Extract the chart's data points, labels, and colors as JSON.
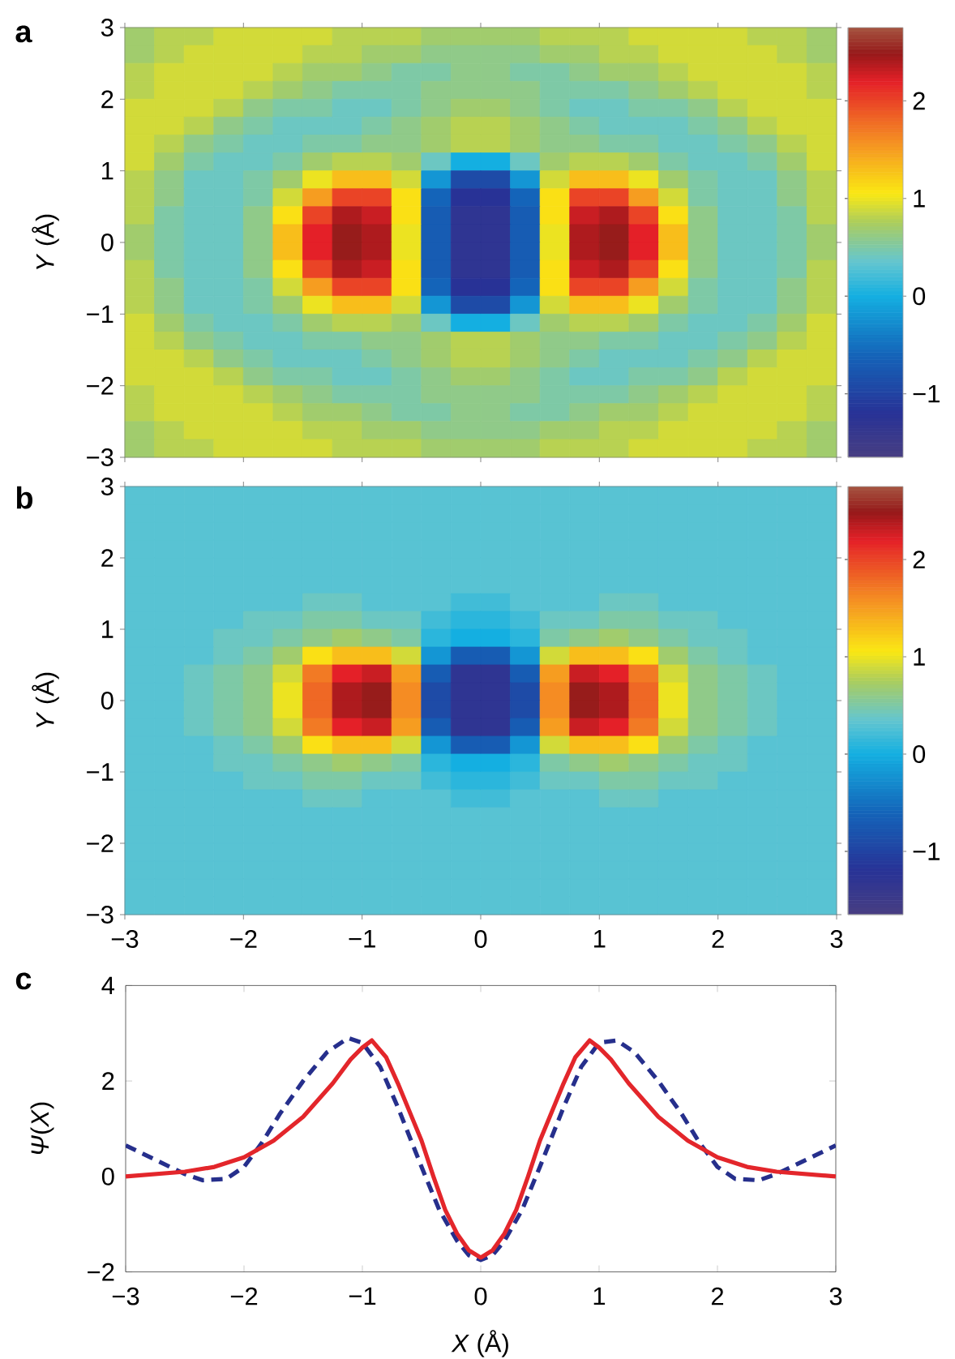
{
  "chart_data": [
    {
      "type": "heatmap",
      "title": "a",
      "ylabel": "*Y* (Å)",
      "xlim": [
        -3,
        3
      ],
      "ylim": [
        -3,
        3
      ],
      "xticks": [
        -3,
        -2,
        -1,
        0,
        1,
        2,
        3
      ],
      "yticks": [
        {
          "value": -3,
          "label": "−3"
        },
        {
          "value": -2,
          "label": "−2"
        },
        {
          "value": -1,
          "label": "−1"
        },
        0,
        1,
        2,
        3
      ],
      "tick_labels": "y",
      "clim": [
        -1.65,
        2.75
      ],
      "cticks": [
        {
          "value": -1,
          "label": "−1"
        },
        0,
        1,
        2
      ],
      "x": [
        -2.875,
        -2.625,
        -2.375,
        -2.125,
        -1.875,
        -1.625,
        -1.375,
        -1.125,
        -0.875,
        -0.625,
        -0.375,
        -0.125,
        0.125,
        0.375,
        0.625,
        0.875,
        1.125,
        1.375,
        1.625,
        1.875,
        2.125,
        2.375,
        2.625,
        2.875
      ],
      "y": [
        2.875,
        2.625,
        2.375,
        2.125,
        1.875,
        1.625,
        1.375,
        1.125,
        0.875,
        0.625,
        0.375,
        0.125,
        -0.125,
        -0.375,
        -0.625,
        -0.875,
        -1.125,
        -1.375,
        -1.625,
        -1.875,
        -2.125,
        -2.375,
        -2.625,
        -2.875
      ],
      "cells": [
        [
          0.7,
          0.8,
          0.8,
          0.9,
          0.9,
          0.9,
          0.9,
          0.8,
          0.8,
          0.8,
          0.7,
          0.7,
          0.7,
          0.7,
          0.8,
          0.8,
          0.8,
          0.9,
          0.9,
          0.9,
          0.9,
          0.8,
          0.8,
          0.7
        ],
        [
          0.7,
          0.8,
          0.9,
          0.9,
          0.9,
          0.9,
          0.8,
          0.8,
          0.7,
          0.7,
          0.6,
          0.6,
          0.6,
          0.6,
          0.7,
          0.7,
          0.8,
          0.8,
          0.9,
          0.9,
          0.9,
          0.9,
          0.8,
          0.7
        ],
        [
          0.8,
          0.9,
          0.9,
          0.9,
          0.9,
          0.8,
          0.7,
          0.7,
          0.6,
          0.5,
          0.5,
          0.6,
          0.6,
          0.5,
          0.5,
          0.6,
          0.7,
          0.7,
          0.8,
          0.9,
          0.9,
          0.9,
          0.9,
          0.8
        ],
        [
          0.8,
          0.9,
          0.9,
          0.9,
          0.8,
          0.7,
          0.6,
          0.5,
          0.5,
          0.5,
          0.6,
          0.6,
          0.6,
          0.6,
          0.5,
          0.5,
          0.5,
          0.6,
          0.7,
          0.8,
          0.9,
          0.9,
          0.9,
          0.8
        ],
        [
          0.9,
          0.9,
          0.9,
          0.8,
          0.6,
          0.5,
          0.5,
          0.4,
          0.4,
          0.5,
          0.6,
          0.7,
          0.7,
          0.6,
          0.5,
          0.4,
          0.4,
          0.5,
          0.5,
          0.6,
          0.8,
          0.9,
          0.9,
          0.9
        ],
        [
          0.9,
          0.9,
          0.8,
          0.6,
          0.5,
          0.4,
          0.4,
          0.4,
          0.5,
          0.6,
          0.7,
          0.8,
          0.8,
          0.7,
          0.6,
          0.5,
          0.4,
          0.4,
          0.4,
          0.5,
          0.6,
          0.8,
          0.9,
          0.9
        ],
        [
          0.9,
          0.8,
          0.6,
          0.5,
          0.4,
          0.4,
          0.5,
          0.5,
          0.6,
          0.6,
          0.7,
          0.8,
          0.8,
          0.7,
          0.6,
          0.6,
          0.5,
          0.5,
          0.4,
          0.4,
          0.5,
          0.6,
          0.8,
          0.9
        ],
        [
          0.9,
          0.7,
          0.5,
          0.4,
          0.4,
          0.5,
          0.7,
          0.8,
          0.8,
          0.7,
          0.4,
          0.0,
          0.0,
          0.4,
          0.7,
          0.8,
          0.8,
          0.7,
          0.5,
          0.4,
          0.4,
          0.5,
          0.7,
          0.9
        ],
        [
          0.8,
          0.6,
          0.4,
          0.4,
          0.5,
          0.7,
          1.0,
          1.3,
          1.3,
          0.9,
          -0.2,
          -0.9,
          -0.9,
          -0.2,
          0.9,
          1.3,
          1.3,
          1.0,
          0.7,
          0.5,
          0.4,
          0.4,
          0.6,
          0.8
        ],
        [
          0.8,
          0.6,
          0.4,
          0.4,
          0.5,
          0.9,
          1.5,
          2.0,
          2.0,
          1.1,
          -0.6,
          -1.2,
          -1.2,
          -0.6,
          1.1,
          2.0,
          2.0,
          1.5,
          0.9,
          0.5,
          0.4,
          0.4,
          0.6,
          0.8
        ],
        [
          0.8,
          0.5,
          0.4,
          0.4,
          0.6,
          1.1,
          2.0,
          2.4,
          2.3,
          1.1,
          -0.7,
          -1.3,
          -1.3,
          -0.7,
          1.1,
          2.3,
          2.4,
          2.0,
          1.1,
          0.6,
          0.4,
          0.4,
          0.5,
          0.8
        ],
        [
          0.7,
          0.5,
          0.4,
          0.4,
          0.6,
          1.3,
          2.2,
          2.5,
          2.4,
          1.0,
          -0.7,
          -1.3,
          -1.3,
          -0.7,
          1.0,
          2.4,
          2.5,
          2.2,
          1.3,
          0.6,
          0.4,
          0.4,
          0.5,
          0.7
        ],
        [
          0.7,
          0.5,
          0.4,
          0.4,
          0.6,
          1.3,
          2.2,
          2.5,
          2.4,
          1.0,
          -0.7,
          -1.3,
          -1.3,
          -0.7,
          1.0,
          2.4,
          2.5,
          2.2,
          1.3,
          0.6,
          0.4,
          0.4,
          0.5,
          0.7
        ],
        [
          0.8,
          0.5,
          0.4,
          0.4,
          0.6,
          1.1,
          2.0,
          2.4,
          2.3,
          1.1,
          -0.7,
          -1.3,
          -1.3,
          -0.7,
          1.1,
          2.3,
          2.4,
          2.0,
          1.1,
          0.6,
          0.4,
          0.4,
          0.5,
          0.8
        ],
        [
          0.8,
          0.6,
          0.4,
          0.4,
          0.5,
          0.9,
          1.5,
          2.0,
          2.0,
          1.1,
          -0.6,
          -1.2,
          -1.2,
          -0.6,
          1.1,
          2.0,
          2.0,
          1.5,
          0.9,
          0.5,
          0.4,
          0.4,
          0.6,
          0.8
        ],
        [
          0.8,
          0.6,
          0.4,
          0.4,
          0.5,
          0.7,
          1.0,
          1.3,
          1.3,
          0.9,
          -0.2,
          -0.9,
          -0.9,
          -0.2,
          0.9,
          1.3,
          1.3,
          1.0,
          0.7,
          0.5,
          0.4,
          0.4,
          0.6,
          0.8
        ],
        [
          0.9,
          0.7,
          0.5,
          0.4,
          0.4,
          0.5,
          0.7,
          0.8,
          0.8,
          0.7,
          0.4,
          0.0,
          0.0,
          0.4,
          0.7,
          0.8,
          0.8,
          0.7,
          0.5,
          0.4,
          0.4,
          0.5,
          0.7,
          0.9
        ],
        [
          0.9,
          0.8,
          0.6,
          0.5,
          0.4,
          0.4,
          0.5,
          0.5,
          0.6,
          0.6,
          0.7,
          0.8,
          0.8,
          0.7,
          0.6,
          0.6,
          0.5,
          0.5,
          0.4,
          0.4,
          0.5,
          0.6,
          0.8,
          0.9
        ],
        [
          0.9,
          0.9,
          0.8,
          0.6,
          0.5,
          0.4,
          0.4,
          0.4,
          0.5,
          0.6,
          0.7,
          0.8,
          0.8,
          0.7,
          0.6,
          0.5,
          0.4,
          0.4,
          0.4,
          0.5,
          0.6,
          0.8,
          0.9,
          0.9
        ],
        [
          0.9,
          0.9,
          0.9,
          0.8,
          0.6,
          0.5,
          0.5,
          0.4,
          0.4,
          0.5,
          0.6,
          0.7,
          0.7,
          0.6,
          0.5,
          0.4,
          0.4,
          0.5,
          0.5,
          0.6,
          0.8,
          0.9,
          0.9,
          0.9
        ],
        [
          0.8,
          0.9,
          0.9,
          0.9,
          0.8,
          0.7,
          0.6,
          0.5,
          0.5,
          0.5,
          0.6,
          0.6,
          0.6,
          0.6,
          0.5,
          0.5,
          0.5,
          0.6,
          0.7,
          0.8,
          0.9,
          0.9,
          0.9,
          0.8
        ],
        [
          0.8,
          0.9,
          0.9,
          0.9,
          0.9,
          0.8,
          0.7,
          0.7,
          0.6,
          0.5,
          0.5,
          0.6,
          0.6,
          0.5,
          0.5,
          0.6,
          0.7,
          0.7,
          0.8,
          0.9,
          0.9,
          0.9,
          0.9,
          0.8
        ],
        [
          0.7,
          0.8,
          0.9,
          0.9,
          0.9,
          0.9,
          0.8,
          0.8,
          0.7,
          0.7,
          0.6,
          0.6,
          0.6,
          0.6,
          0.7,
          0.7,
          0.8,
          0.8,
          0.9,
          0.9,
          0.9,
          0.9,
          0.8,
          0.7
        ],
        [
          0.7,
          0.8,
          0.8,
          0.9,
          0.9,
          0.9,
          0.9,
          0.8,
          0.8,
          0.8,
          0.7,
          0.7,
          0.7,
          0.7,
          0.8,
          0.8,
          0.8,
          0.9,
          0.9,
          0.9,
          0.9,
          0.8,
          0.8,
          0.7
        ]
      ]
    },
    {
      "type": "heatmap",
      "title": "b",
      "ylabel": "*Y* (Å)",
      "xlim": [
        -3,
        3
      ],
      "ylim": [
        -3,
        3
      ],
      "xticks": [
        {
          "value": -3,
          "label": "−3"
        },
        {
          "value": -2,
          "label": "−2"
        },
        {
          "value": -1,
          "label": "−1"
        },
        0,
        1,
        2,
        3
      ],
      "yticks": [
        {
          "value": -3,
          "label": "−3"
        },
        {
          "value": -2,
          "label": "−2"
        },
        {
          "value": -1,
          "label": "−1"
        },
        0,
        1,
        2,
        3
      ],
      "clim": [
        -1.65,
        2.75
      ],
      "cticks": [
        {
          "value": -1,
          "label": "−1"
        },
        0,
        1,
        2
      ],
      "x": [
        -2.875,
        -2.625,
        -2.375,
        -2.125,
        -1.875,
        -1.625,
        -1.375,
        -1.125,
        -0.875,
        -0.625,
        -0.375,
        -0.125,
        0.125,
        0.375,
        0.625,
        0.875,
        1.125,
        1.375,
        1.625,
        1.875,
        2.125,
        2.375,
        2.625,
        2.875
      ],
      "y": [
        2.875,
        2.625,
        2.375,
        2.125,
        1.875,
        1.625,
        1.375,
        1.125,
        0.875,
        0.625,
        0.375,
        0.125,
        -0.125,
        -0.375,
        -0.625,
        -0.875,
        -1.125,
        -1.375,
        -1.625,
        -1.875,
        -2.125,
        -2.375,
        -2.625,
        -2.875
      ],
      "cells": [
        [
          0.3,
          0.3,
          0.3,
          0.3,
          0.3,
          0.3,
          0.3,
          0.3,
          0.3,
          0.3,
          0.3,
          0.3,
          0.3,
          0.3,
          0.3,
          0.3,
          0.3,
          0.3,
          0.3,
          0.3,
          0.3,
          0.3,
          0.3,
          0.3
        ],
        [
          0.3,
          0.3,
          0.3,
          0.3,
          0.3,
          0.3,
          0.3,
          0.3,
          0.3,
          0.3,
          0.3,
          0.3,
          0.3,
          0.3,
          0.3,
          0.3,
          0.3,
          0.3,
          0.3,
          0.3,
          0.3,
          0.3,
          0.3,
          0.3
        ],
        [
          0.3,
          0.3,
          0.3,
          0.3,
          0.3,
          0.3,
          0.3,
          0.3,
          0.3,
          0.3,
          0.3,
          0.3,
          0.3,
          0.3,
          0.3,
          0.3,
          0.3,
          0.3,
          0.3,
          0.3,
          0.3,
          0.3,
          0.3,
          0.3
        ],
        [
          0.3,
          0.3,
          0.3,
          0.3,
          0.3,
          0.3,
          0.3,
          0.3,
          0.3,
          0.3,
          0.3,
          0.3,
          0.3,
          0.3,
          0.3,
          0.3,
          0.3,
          0.3,
          0.3,
          0.3,
          0.3,
          0.3,
          0.3,
          0.3
        ],
        [
          0.3,
          0.3,
          0.3,
          0.3,
          0.3,
          0.3,
          0.3,
          0.3,
          0.3,
          0.3,
          0.3,
          0.3,
          0.3,
          0.3,
          0.3,
          0.3,
          0.3,
          0.3,
          0.3,
          0.3,
          0.3,
          0.3,
          0.3,
          0.3
        ],
        [
          0.3,
          0.3,
          0.3,
          0.3,
          0.3,
          0.3,
          0.3,
          0.3,
          0.3,
          0.3,
          0.3,
          0.3,
          0.3,
          0.3,
          0.3,
          0.3,
          0.3,
          0.3,
          0.3,
          0.3,
          0.3,
          0.3,
          0.3,
          0.3
        ],
        [
          0.3,
          0.3,
          0.3,
          0.3,
          0.3,
          0.3,
          0.4,
          0.4,
          0.3,
          0.3,
          0.3,
          0.2,
          0.2,
          0.3,
          0.3,
          0.3,
          0.4,
          0.4,
          0.3,
          0.3,
          0.3,
          0.3,
          0.3,
          0.3
        ],
        [
          0.3,
          0.3,
          0.3,
          0.3,
          0.4,
          0.4,
          0.5,
          0.5,
          0.4,
          0.4,
          0.2,
          0.1,
          0.1,
          0.2,
          0.4,
          0.4,
          0.5,
          0.5,
          0.4,
          0.4,
          0.3,
          0.3,
          0.3,
          0.3
        ],
        [
          0.3,
          0.3,
          0.3,
          0.4,
          0.4,
          0.5,
          0.6,
          0.7,
          0.6,
          0.5,
          0.1,
          0.0,
          0.0,
          0.1,
          0.5,
          0.6,
          0.7,
          0.6,
          0.5,
          0.4,
          0.4,
          0.3,
          0.3,
          0.3
        ],
        [
          0.3,
          0.3,
          0.3,
          0.4,
          0.5,
          0.7,
          1.1,
          1.3,
          1.3,
          0.9,
          -0.2,
          -0.7,
          -0.7,
          -0.2,
          0.9,
          1.3,
          1.3,
          1.1,
          0.7,
          0.5,
          0.4,
          0.3,
          0.3,
          0.3
        ],
        [
          0.3,
          0.3,
          0.4,
          0.5,
          0.6,
          0.9,
          1.7,
          2.2,
          2.3,
          1.5,
          -0.7,
          -1.3,
          -1.3,
          -0.7,
          1.5,
          2.3,
          2.2,
          1.7,
          0.9,
          0.6,
          0.5,
          0.4,
          0.3,
          0.3
        ],
        [
          0.3,
          0.3,
          0.4,
          0.5,
          0.6,
          1.0,
          1.8,
          2.4,
          2.5,
          1.6,
          -0.9,
          -1.3,
          -1.3,
          -0.9,
          1.6,
          2.5,
          2.4,
          1.8,
          1.0,
          0.6,
          0.5,
          0.4,
          0.3,
          0.3
        ],
        [
          0.3,
          0.3,
          0.4,
          0.5,
          0.6,
          1.0,
          1.8,
          2.4,
          2.5,
          1.6,
          -0.9,
          -1.3,
          -1.3,
          -0.9,
          1.6,
          2.5,
          2.4,
          1.8,
          1.0,
          0.6,
          0.5,
          0.4,
          0.3,
          0.3
        ],
        [
          0.3,
          0.3,
          0.4,
          0.5,
          0.6,
          0.9,
          1.7,
          2.2,
          2.3,
          1.5,
          -0.7,
          -1.3,
          -1.3,
          -0.7,
          1.5,
          2.3,
          2.2,
          1.7,
          0.9,
          0.6,
          0.5,
          0.4,
          0.3,
          0.3
        ],
        [
          0.3,
          0.3,
          0.3,
          0.4,
          0.5,
          0.7,
          1.1,
          1.3,
          1.3,
          0.9,
          -0.2,
          -0.7,
          -0.7,
          -0.2,
          0.9,
          1.3,
          1.3,
          1.1,
          0.7,
          0.5,
          0.4,
          0.3,
          0.3,
          0.3
        ],
        [
          0.3,
          0.3,
          0.3,
          0.4,
          0.4,
          0.5,
          0.6,
          0.7,
          0.6,
          0.5,
          0.1,
          0.0,
          0.0,
          0.1,
          0.5,
          0.6,
          0.7,
          0.6,
          0.5,
          0.4,
          0.4,
          0.3,
          0.3,
          0.3
        ],
        [
          0.3,
          0.3,
          0.3,
          0.3,
          0.4,
          0.4,
          0.5,
          0.5,
          0.4,
          0.4,
          0.2,
          0.1,
          0.1,
          0.2,
          0.4,
          0.4,
          0.5,
          0.5,
          0.4,
          0.4,
          0.3,
          0.3,
          0.3,
          0.3
        ],
        [
          0.3,
          0.3,
          0.3,
          0.3,
          0.3,
          0.3,
          0.4,
          0.4,
          0.3,
          0.3,
          0.3,
          0.2,
          0.2,
          0.3,
          0.3,
          0.3,
          0.4,
          0.4,
          0.3,
          0.3,
          0.3,
          0.3,
          0.3,
          0.3
        ],
        [
          0.3,
          0.3,
          0.3,
          0.3,
          0.3,
          0.3,
          0.3,
          0.3,
          0.3,
          0.3,
          0.3,
          0.3,
          0.3,
          0.3,
          0.3,
          0.3,
          0.3,
          0.3,
          0.3,
          0.3,
          0.3,
          0.3,
          0.3,
          0.3
        ],
        [
          0.3,
          0.3,
          0.3,
          0.3,
          0.3,
          0.3,
          0.3,
          0.3,
          0.3,
          0.3,
          0.3,
          0.3,
          0.3,
          0.3,
          0.3,
          0.3,
          0.3,
          0.3,
          0.3,
          0.3,
          0.3,
          0.3,
          0.3,
          0.3
        ],
        [
          0.3,
          0.3,
          0.3,
          0.3,
          0.3,
          0.3,
          0.3,
          0.3,
          0.3,
          0.3,
          0.3,
          0.3,
          0.3,
          0.3,
          0.3,
          0.3,
          0.3,
          0.3,
          0.3,
          0.3,
          0.3,
          0.3,
          0.3,
          0.3
        ],
        [
          0.3,
          0.3,
          0.3,
          0.3,
          0.3,
          0.3,
          0.3,
          0.3,
          0.3,
          0.3,
          0.3,
          0.3,
          0.3,
          0.3,
          0.3,
          0.3,
          0.3,
          0.3,
          0.3,
          0.3,
          0.3,
          0.3,
          0.3,
          0.3
        ],
        [
          0.3,
          0.3,
          0.3,
          0.3,
          0.3,
          0.3,
          0.3,
          0.3,
          0.3,
          0.3,
          0.3,
          0.3,
          0.3,
          0.3,
          0.3,
          0.3,
          0.3,
          0.3,
          0.3,
          0.3,
          0.3,
          0.3,
          0.3,
          0.3
        ],
        [
          0.3,
          0.3,
          0.3,
          0.3,
          0.3,
          0.3,
          0.3,
          0.3,
          0.3,
          0.3,
          0.3,
          0.3,
          0.3,
          0.3,
          0.3,
          0.3,
          0.3,
          0.3,
          0.3,
          0.3,
          0.3,
          0.3,
          0.3,
          0.3
        ]
      ]
    },
    {
      "type": "line",
      "title": "c",
      "xlabel": "*X* (Å)",
      "ylabel": "*Ψ*(*X*)",
      "xlim": [
        -3,
        3
      ],
      "ylim": [
        -2,
        4
      ],
      "xticks": [
        {
          "value": -3,
          "label": "−3"
        },
        {
          "value": -2,
          "label": "−2"
        },
        {
          "value": -1,
          "label": "−1"
        },
        0,
        1,
        2,
        3
      ],
      "yticks": [
        {
          "value": -2,
          "label": "−2"
        },
        0,
        2,
        4
      ],
      "series": [
        {
          "color": "#262f8c",
          "line_style": "dashed",
          "x": [
            -3,
            -2.75,
            -2.5,
            -2.35,
            -2.15,
            -2,
            -1.85,
            -1.7,
            -1.5,
            -1.3,
            -1.12,
            -1,
            -0.85,
            -0.7,
            -0.5,
            -0.35,
            -0.2,
            -0.1,
            0,
            0.1,
            0.2,
            0.35,
            0.5,
            0.7,
            0.85,
            1,
            1.15,
            1.3,
            1.5,
            1.7,
            1.85,
            2,
            2.15,
            2.35,
            2.5,
            2.75,
            3
          ],
          "values": [
            0.65,
            0.35,
            0.05,
            -0.08,
            -0.05,
            0.2,
            0.7,
            1.3,
            2.0,
            2.6,
            2.9,
            2.8,
            2.3,
            1.45,
            0.2,
            -0.7,
            -1.35,
            -1.65,
            -1.75,
            -1.65,
            -1.35,
            -0.7,
            0.2,
            1.45,
            2.3,
            2.8,
            2.85,
            2.6,
            2.0,
            1.3,
            0.7,
            0.2,
            -0.05,
            -0.08,
            0.05,
            0.35,
            0.65
          ]
        },
        {
          "color": "#e3262b",
          "line_style": "solid",
          "x": [
            -3,
            -2.5,
            -2.25,
            -2,
            -1.75,
            -1.5,
            -1.25,
            -1.1,
            -1,
            -0.92,
            -0.8,
            -0.7,
            -0.6,
            -0.5,
            -0.4,
            -0.3,
            -0.2,
            -0.1,
            0,
            0.1,
            0.2,
            0.3,
            0.4,
            0.5,
            0.6,
            0.7,
            0.8,
            0.92,
            1,
            1.1,
            1.25,
            1.5,
            1.75,
            2,
            2.25,
            2.5,
            3
          ],
          "values": [
            0,
            0.1,
            0.2,
            0.4,
            0.75,
            1.25,
            1.95,
            2.45,
            2.7,
            2.85,
            2.5,
            1.95,
            1.35,
            0.75,
            0,
            -0.7,
            -1.2,
            -1.55,
            -1.7,
            -1.55,
            -1.2,
            -0.7,
            0,
            0.75,
            1.35,
            1.95,
            2.5,
            2.85,
            2.7,
            2.45,
            1.95,
            1.25,
            0.75,
            0.4,
            0.2,
            0.1,
            0
          ]
        }
      ]
    }
  ]
}
